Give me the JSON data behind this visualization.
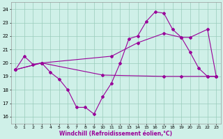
{
  "xlabel": "Windchill (Refroidissement éolien,°C)",
  "bg_color": "#cff0e8",
  "grid_color": "#99ccbb",
  "line_color": "#990099",
  "ylim": [
    15.5,
    24.5
  ],
  "xlim": [
    -0.5,
    23.5
  ],
  "yticks": [
    16,
    17,
    18,
    19,
    20,
    21,
    22,
    23,
    24
  ],
  "xticks": [
    0,
    1,
    2,
    3,
    4,
    5,
    6,
    7,
    8,
    9,
    10,
    11,
    12,
    13,
    14,
    15,
    16,
    17,
    18,
    19,
    20,
    21,
    22,
    23
  ],
  "series1_x": [
    0,
    1,
    2,
    3,
    4,
    5,
    6,
    7,
    8,
    9,
    10,
    11,
    12,
    13,
    14,
    15,
    16,
    17,
    18,
    19,
    20,
    21,
    22,
    23
  ],
  "series1_y": [
    19.5,
    20.5,
    19.9,
    20.0,
    19.3,
    18.8,
    18.0,
    16.7,
    16.7,
    16.2,
    17.5,
    18.5,
    20.0,
    21.8,
    22.0,
    23.1,
    23.8,
    23.7,
    22.5,
    21.9,
    20.8,
    19.6,
    19.0,
    19.0
  ],
  "series2_x": [
    0,
    3,
    11,
    14,
    17,
    19,
    20,
    22,
    23
  ],
  "series2_y": [
    19.5,
    20.0,
    20.5,
    21.5,
    22.2,
    21.9,
    21.9,
    22.5,
    19.0
  ],
  "series3_x": [
    0,
    3,
    10,
    17,
    19,
    22,
    23
  ],
  "series3_y": [
    19.5,
    20.0,
    19.1,
    19.0,
    19.0,
    19.0,
    19.0
  ]
}
